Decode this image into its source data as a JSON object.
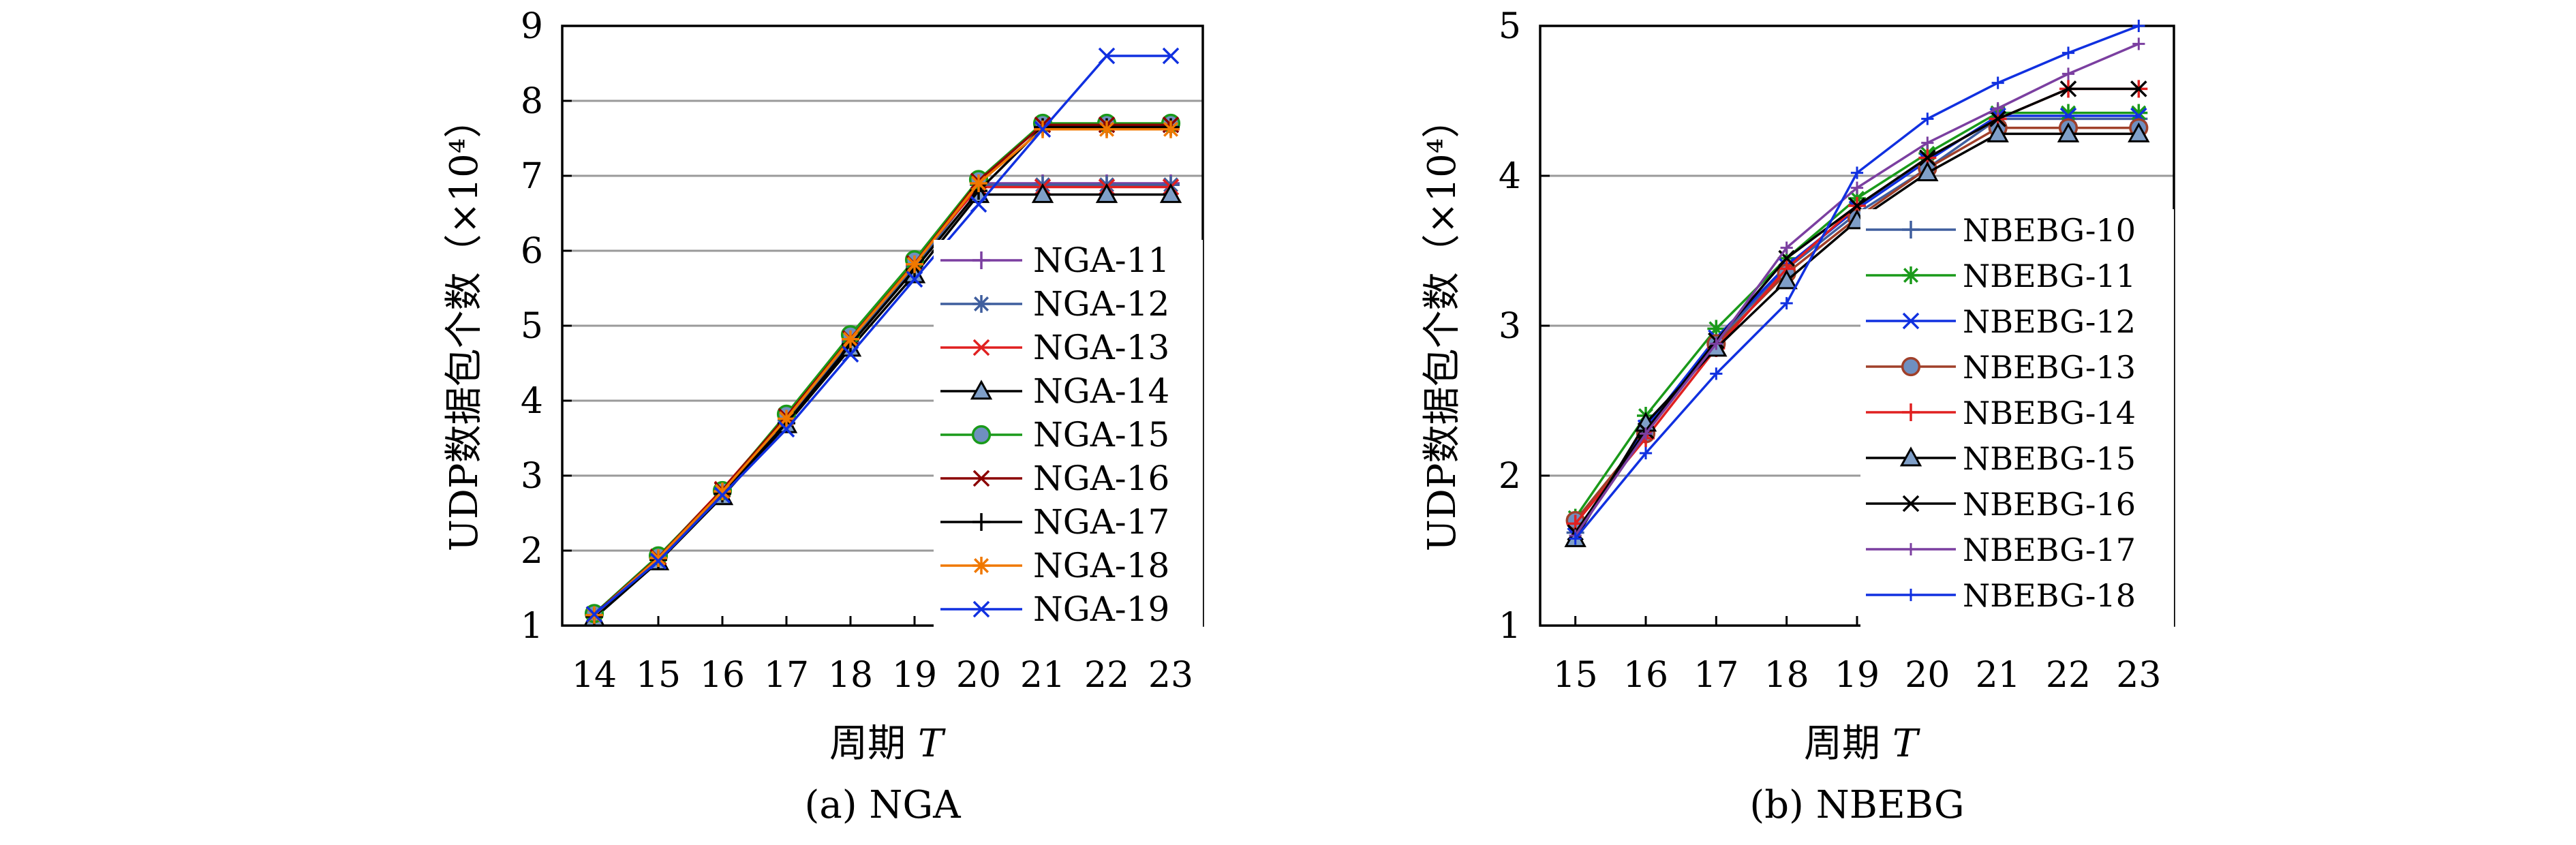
{
  "chart_data": [
    {
      "type": "line",
      "caption": "(a) NGA",
      "xlabel": "周期",
      "xlabel_var": "T",
      "ylabel": "UDP数据包个数（×10⁴）",
      "x": [
        14,
        15,
        16,
        17,
        18,
        19,
        20,
        21,
        22,
        23
      ],
      "xlim": [
        13.5,
        23.5
      ],
      "ylim": [
        1,
        9
      ],
      "yticks": [
        1,
        2,
        3,
        4,
        5,
        6,
        7,
        8,
        9
      ],
      "grid": "horizontal",
      "legend_position": "right",
      "series": [
        {
          "name": "NGA-11",
          "color": "#7b3fa0",
          "marker": "plus",
          "values": [
            1.14,
            1.9,
            2.78,
            3.75,
            4.8,
            5.8,
            6.9,
            6.9,
            6.9,
            6.9
          ]
        },
        {
          "name": "NGA-12",
          "color": "#3f5e9e",
          "marker": "asterisk",
          "values": [
            1.13,
            1.89,
            2.77,
            3.74,
            4.78,
            5.78,
            6.88,
            6.88,
            6.88,
            6.88
          ]
        },
        {
          "name": "NGA-13",
          "color": "#e02020",
          "marker": "x",
          "values": [
            1.15,
            1.92,
            2.82,
            3.8,
            4.85,
            5.85,
            6.85,
            6.85,
            6.85,
            6.85
          ]
        },
        {
          "name": "NGA-14",
          "color": "#000000",
          "marker": "triangle",
          "values": [
            1.1,
            1.85,
            2.72,
            3.68,
            4.7,
            5.68,
            6.75,
            6.75,
            6.75,
            6.75
          ]
        },
        {
          "name": "NGA-15",
          "color": "#1a9a1a",
          "marker": "circle",
          "values": [
            1.16,
            1.93,
            2.8,
            3.82,
            4.88,
            5.88,
            6.95,
            7.7,
            7.7,
            7.7
          ]
        },
        {
          "name": "NGA-16",
          "color": "#8b0000",
          "marker": "x",
          "values": [
            1.15,
            1.91,
            2.81,
            3.79,
            4.83,
            5.83,
            6.93,
            7.68,
            7.68,
            7.68
          ]
        },
        {
          "name": "NGA-17",
          "color": "#000000",
          "marker": "plus",
          "values": [
            1.12,
            1.88,
            2.76,
            3.7,
            4.75,
            5.75,
            6.8,
            7.65,
            7.65,
            7.65
          ]
        },
        {
          "name": "NGA-18",
          "color": "#f07800",
          "marker": "asterisk",
          "values": [
            1.14,
            1.9,
            2.79,
            3.76,
            4.82,
            5.82,
            6.9,
            7.62,
            7.62,
            7.62
          ]
        },
        {
          "name": "NGA-19",
          "color": "#1030e0",
          "marker": "x",
          "values": [
            1.15,
            1.86,
            2.74,
            3.62,
            4.62,
            5.62,
            6.62,
            7.62,
            8.6,
            8.6
          ]
        }
      ]
    },
    {
      "type": "line",
      "caption": "(b) NBEBG",
      "xlabel": "周期",
      "xlabel_var": "T",
      "ylabel": "UDP数据包个数（×10⁴）",
      "x": [
        15,
        16,
        17,
        18,
        19,
        20,
        21,
        22,
        23
      ],
      "xlim": [
        14.5,
        23.5
      ],
      "ylim": [
        1,
        5
      ],
      "yticks": [
        1,
        2,
        3,
        4,
        5
      ],
      "grid": "horizontal",
      "legend_position": "right",
      "series": [
        {
          "name": "NBEBG-10",
          "color": "#3f5e9e",
          "marker": "plus",
          "values": [
            1.62,
            2.3,
            2.9,
            3.38,
            3.75,
            4.05,
            4.38,
            4.38,
            4.38
          ]
        },
        {
          "name": "NBEBG-11",
          "color": "#1a9a1a",
          "marker": "asterisk",
          "values": [
            1.72,
            2.4,
            2.98,
            3.45,
            3.85,
            4.15,
            4.42,
            4.42,
            4.42
          ]
        },
        {
          "name": "NBEBG-12",
          "color": "#1030e0",
          "marker": "x",
          "values": [
            1.6,
            2.32,
            2.92,
            3.4,
            3.78,
            4.1,
            4.4,
            4.4,
            4.4
          ]
        },
        {
          "name": "NBEBG-13",
          "color": "#a0402a",
          "marker": "circle",
          "values": [
            1.7,
            2.28,
            2.88,
            3.35,
            3.72,
            4.05,
            4.32,
            4.32,
            4.32
          ]
        },
        {
          "name": "NBEBG-14",
          "color": "#e02020",
          "marker": "plus",
          "values": [
            1.68,
            2.25,
            2.85,
            3.38,
            3.8,
            4.12,
            4.38,
            4.58,
            4.58
          ]
        },
        {
          "name": "NBEBG-15",
          "color": "#000000",
          "marker": "triangle",
          "values": [
            1.58,
            2.35,
            2.85,
            3.3,
            3.7,
            4.02,
            4.28,
            4.28,
            4.28
          ]
        },
        {
          "name": "NBEBG-16",
          "color": "#000000",
          "marker": "x",
          "values": [
            1.62,
            2.3,
            2.9,
            3.45,
            3.8,
            4.12,
            4.38,
            4.58,
            4.58
          ]
        },
        {
          "name": "NBEBG-17",
          "color": "#7b3fa0",
          "marker": "dot",
          "values": [
            1.6,
            2.28,
            2.88,
            3.52,
            3.92,
            4.22,
            4.45,
            4.68,
            4.88
          ]
        },
        {
          "name": "NBEBG-18",
          "color": "#1030e0",
          "marker": "dot",
          "values": [
            1.58,
            2.15,
            2.68,
            3.15,
            4.02,
            4.38,
            4.62,
            4.82,
            5.0
          ]
        }
      ]
    }
  ]
}
